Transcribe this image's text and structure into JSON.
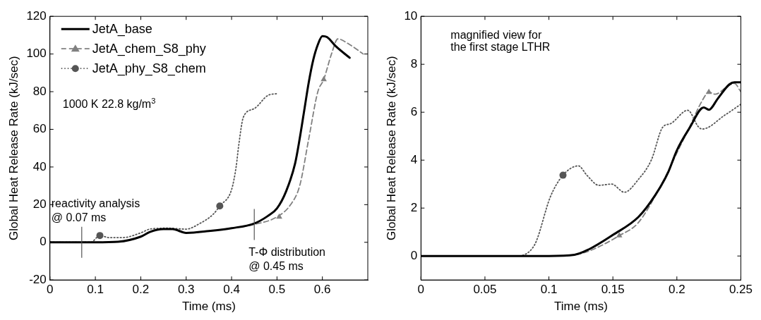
{
  "chart_data": [
    {
      "type": "line",
      "xlabel": "Time (ms)",
      "ylabel": "Global Heat Release Rate (kJ/sec)",
      "xlim": [
        0,
        0.7
      ],
      "xticks": [
        0,
        0.1,
        0.2,
        0.3,
        0.4,
        0.5,
        0.6
      ],
      "ylim": [
        -20,
        120
      ],
      "yticks": [
        -20,
        0,
        20,
        40,
        60,
        80,
        100,
        120
      ],
      "grid": false,
      "legend": "top left",
      "annotations": [
        "1000 K 22.8 kg/m$^{3}$",
        {
          "text": "reactivity analysis\n@ 0.07 ms",
          "x": 0.07,
          "y": 0
        },
        {
          "text": "T-Φ distribution\n@ 0.45 ms",
          "x": 0.45,
          "y": 9.5
        }
      ],
      "series": [
        {
          "name": "JetA_base",
          "color": "#000000",
          "line_style": "solid",
          "marker": "none",
          "x": [
            0,
            0.05,
            0.1,
            0.15,
            0.2,
            0.22,
            0.25,
            0.27,
            0.3,
            0.35,
            0.4,
            0.45,
            0.48,
            0.5,
            0.52,
            0.54,
            0.55,
            0.56,
            0.57,
            0.58,
            0.59,
            0.6,
            0.61,
            0.63,
            0.66
          ],
          "values": [
            0,
            0,
            0,
            0.3,
            3,
            5.5,
            7,
            7,
            5,
            6,
            7.5,
            10,
            14,
            18,
            27,
            42,
            55,
            70,
            85,
            97,
            105,
            109.5,
            109,
            104,
            98
          ]
        },
        {
          "name": "JetA_chem_S8_phy",
          "color": "#808080",
          "line_style": "dashed",
          "marker": "none",
          "x": [
            0,
            0.05,
            0.1,
            0.15,
            0.2,
            0.22,
            0.25,
            0.27,
            0.3,
            0.35,
            0.4,
            0.45,
            0.5,
            0.53,
            0.55,
            0.57,
            0.59,
            0.603,
            0.62,
            0.634,
            0.66,
            0.69
          ],
          "values": [
            0,
            0,
            0,
            0.3,
            3,
            5.5,
            7,
            7,
            5,
            6,
            7.5,
            9.5,
            13.5,
            20,
            30,
            55,
            80,
            86.5,
            100,
            108,
            105,
            100
          ]
        },
        {
          "type": "scatter",
          "color": "#808080",
          "marker": "triangle",
          "x": [
            0.505,
            0.603
          ],
          "values": [
            13.5,
            86.5
          ]
        },
        {
          "type": "scatter",
          "color": "#555555",
          "marker": "circle",
          "x": [
            0.11,
            0.374
          ],
          "values": [
            3.6,
            19.3
          ]
        },
        {
          "name": "JetA_phy_S8_chem",
          "color": "#555555",
          "line_style": "dotted",
          "marker": "none",
          "x": [
            0,
            0.09,
            0.11,
            0.13,
            0.16,
            0.2,
            0.22,
            0.26,
            0.3,
            0.33,
            0.36,
            0.374,
            0.4,
            0.41,
            0.416,
            0.426,
            0.45,
            0.48,
            0.502
          ],
          "values": [
            0,
            0,
            3.6,
            2.5,
            2.5,
            5,
            7,
            7.5,
            7,
            10,
            15,
            19.3,
            28,
            40,
            52,
            66.5,
            71,
            78,
            79
          ]
        }
      ]
    },
    {
      "type": "line",
      "xlabel": "Time (ms)",
      "ylabel": "Global Heat Release Rate (kJ/sec)",
      "xlim": [
        0,
        0.25
      ],
      "xticks": [
        0,
        0.05,
        0.1,
        0.15,
        0.2,
        0.25
      ],
      "ylim": [
        -1,
        10
      ],
      "yticks": [
        0,
        2,
        4,
        6,
        8,
        10
      ],
      "grid": false,
      "legend": false,
      "annotations": [
        "magnified view for\nthe first stage LTHR"
      ],
      "series": [
        {
          "color": "#000000",
          "line_style": "solid",
          "marker": "none",
          "x": [
            0,
            0.05,
            0.1,
            0.12,
            0.131,
            0.15,
            0.17,
            0.183,
            0.193,
            0.2,
            0.21,
            0.221,
            0.225,
            0.232,
            0.241,
            0.245,
            0.25
          ],
          "values": [
            0,
            0,
            0,
            0.05,
            0.27,
            0.88,
            1.63,
            2.53,
            3.47,
            4.41,
            5.35,
            6.2,
            6.1,
            6.57,
            7.16,
            7.25,
            7.25
          ]
        },
        {
          "type": "scatter",
          "color": "#808080",
          "marker": "triangle",
          "x": [
            0.155,
            0.225
          ],
          "values": [
            0.85,
            6.84
          ]
        },
        {
          "type": "scatter",
          "color": "#555555",
          "marker": "circle",
          "x": [
            0.111
          ],
          "values": [
            3.37
          ]
        },
        {
          "color": "#808080",
          "line_style": "dashed",
          "marker": "none",
          "x": [
            0,
            0.05,
            0.1,
            0.12,
            0.131,
            0.155,
            0.17,
            0.19,
            0.2,
            0.21,
            0.22,
            0.225,
            0.23,
            0.24,
            0.245,
            0.25
          ],
          "values": [
            0,
            0,
            0,
            0.05,
            0.2,
            0.85,
            1.4,
            3.2,
            4.3,
            5.4,
            6.5,
            6.84,
            6.75,
            7.1,
            7.2,
            6.85
          ]
        },
        {
          "color": "#555555",
          "line_style": "dotted",
          "marker": "none",
          "x": [
            0,
            0.075,
            0.085,
            0.09,
            0.101,
            0.111,
            0.123,
            0.13,
            0.139,
            0.149,
            0.159,
            0.17,
            0.18,
            0.189,
            0.195,
            0.2085,
            0.217,
            0.22,
            0.2375,
            0.25
          ],
          "values": [
            0,
            0,
            0.2,
            0.6,
            2.45,
            3.37,
            3.76,
            3.35,
            2.95,
            3.0,
            2.66,
            3.2,
            4.0,
            5.38,
            5.52,
            6.08,
            5.38,
            5.3,
            5.88,
            6.33
          ]
        }
      ]
    }
  ]
}
